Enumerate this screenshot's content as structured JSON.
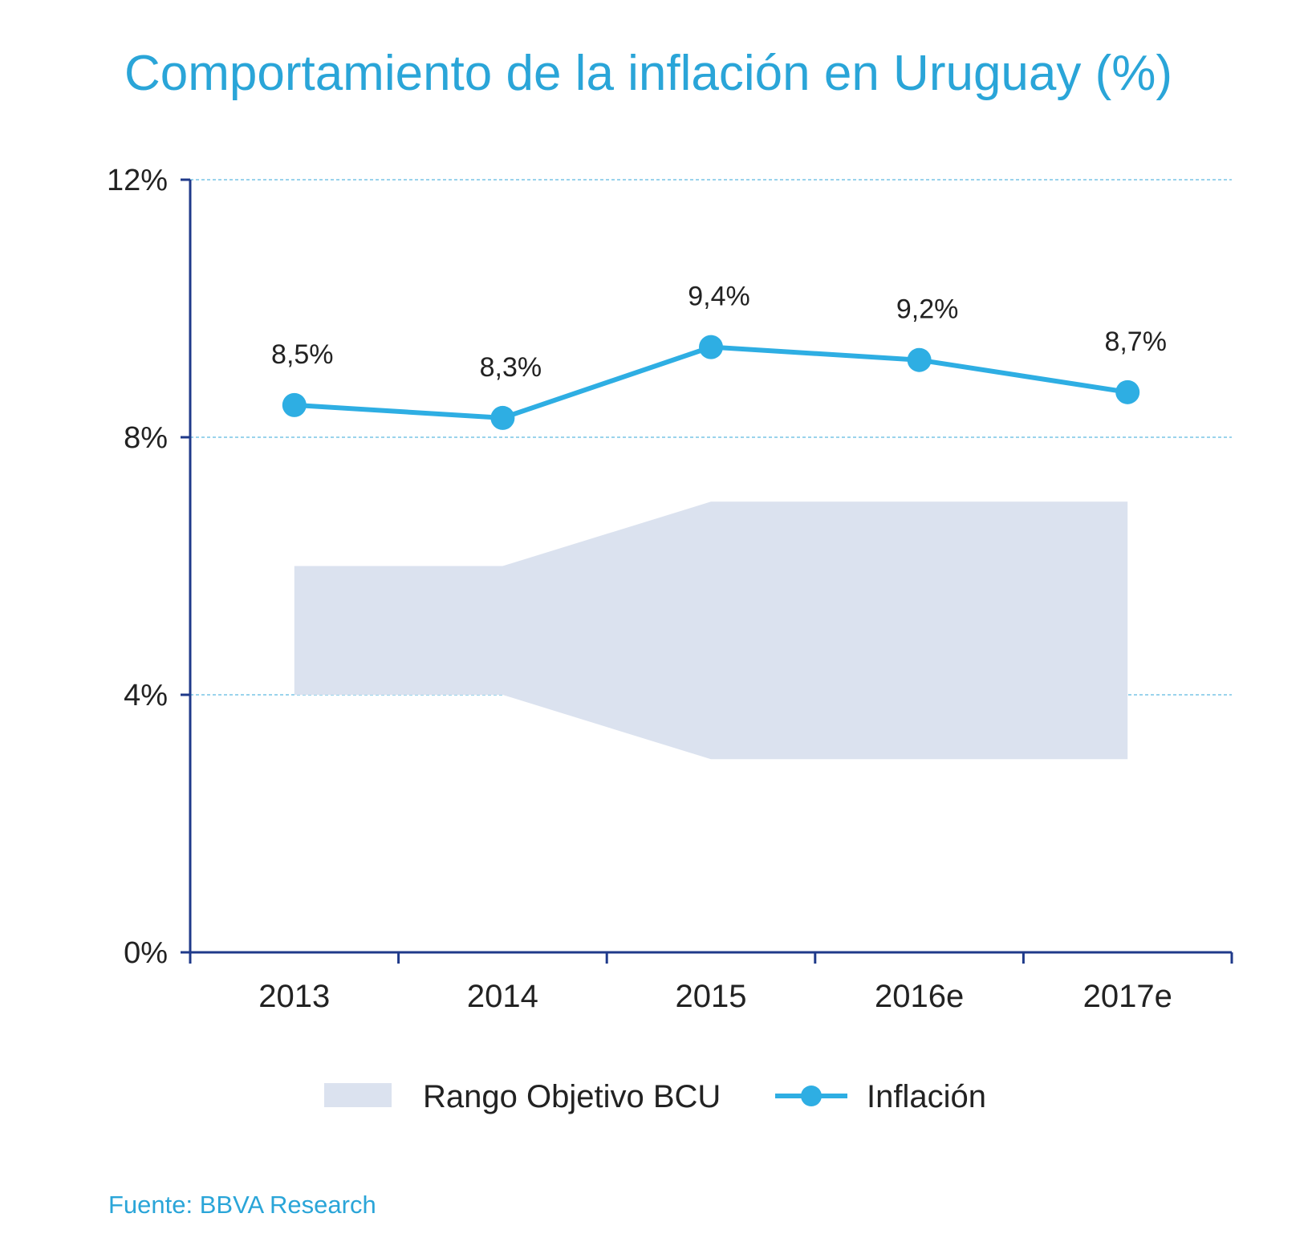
{
  "chart_data": {
    "type": "line",
    "title": "Comportamiento de la inflación en Uruguay (%)",
    "source": "Fuente: BBVA Research",
    "categories": [
      "2013",
      "2014",
      "2015",
      "2016e",
      "2017e"
    ],
    "yticks": [
      "0%",
      "4%",
      "8%",
      "12%"
    ],
    "ytick_values": [
      0,
      4,
      8,
      12
    ],
    "ylim": [
      0,
      12
    ],
    "grid": true,
    "series": [
      {
        "name": "Inflación",
        "kind": "line",
        "values": [
          8.5,
          8.3,
          9.4,
          9.2,
          8.7
        ],
        "labels": [
          "8,5%",
          "8,3%",
          "9,4%",
          "9,2%",
          "8,7%"
        ]
      },
      {
        "name": "Rango Objetivo BCU",
        "kind": "band",
        "lower": [
          4,
          4,
          3,
          3,
          3
        ],
        "upper": [
          6,
          6,
          7,
          7,
          7
        ]
      }
    ],
    "legend": {
      "position": "bottom",
      "items": [
        "Rango Objetivo BCU",
        "Inflación"
      ]
    }
  },
  "colors": {
    "title": "#2aa5d8",
    "line": "#2eaee3",
    "band": "#dbe2ef",
    "axis": "#1f3a8a",
    "grid": "#9ad3ec",
    "text": "#222222",
    "source": "#2aa5d8"
  }
}
